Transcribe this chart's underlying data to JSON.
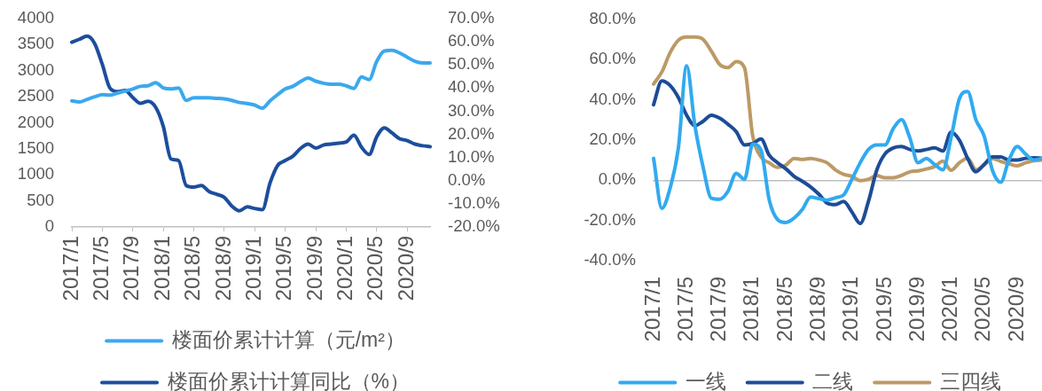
{
  "chart_data": [
    {
      "type": "line",
      "categories": [
        "2017/1",
        null,
        null,
        null,
        "2017/5",
        null,
        null,
        null,
        "2017/9",
        null,
        null,
        null,
        "2018/1",
        null,
        null,
        null,
        "2018/5",
        null,
        null,
        null,
        "2018/9",
        null,
        null,
        null,
        "2019/1",
        null,
        null,
        null,
        "2019/5",
        null,
        null,
        null,
        "2019/9",
        null,
        null,
        null,
        "2020/1",
        null,
        null,
        null,
        "2020/5",
        null,
        null,
        null,
        "2020/9",
        null,
        null,
        null
      ],
      "series": [
        {
          "name": "楼面价累计计算（元/m²）",
          "color": "#3ba8ef",
          "values": [
            2420,
            2400,
            2450,
            2500,
            2540,
            2530,
            2570,
            2610,
            2650,
            2700,
            2710,
            2770,
            2670,
            2650,
            2670,
            2430,
            2480,
            2480,
            2480,
            2470,
            2460,
            2430,
            2390,
            2370,
            2340,
            2280,
            2420,
            2540,
            2650,
            2700,
            2790,
            2860,
            2800,
            2760,
            2740,
            2740,
            2710,
            2660,
            2880,
            2830,
            3180,
            3380,
            3390,
            3340,
            3260,
            3180,
            3150,
            3150
          ]
        },
        {
          "name": "楼面价累计计算同比（%）",
          "color": "#1c4e9d",
          "axis": "y2",
          "values": [
            59.8,
            61.1,
            62.4,
            59.2,
            50.2,
            40.0,
            38.5,
            39.0,
            35.9,
            33.4,
            34.3,
            31.7,
            23.4,
            9.4,
            8.7,
            -2.1,
            -2.8,
            -2.1,
            -4.7,
            -5.9,
            -7.2,
            -11.0,
            -13.0,
            -11.3,
            -12.0,
            -12.5,
            -1.0,
            6.6,
            8.7,
            10.6,
            13.9,
            15.8,
            14.1,
            15.4,
            15.8,
            16.2,
            16.7,
            19.6,
            14.5,
            11.3,
            19.0,
            22.8,
            20.6,
            18.1,
            17.3,
            15.8,
            15.1,
            14.7
          ]
        }
      ],
      "ylim": [
        0,
        4000
      ],
      "yticks": [
        0,
        500,
        1000,
        1500,
        2000,
        2500,
        3000,
        3500,
        4000
      ],
      "y2lim": [
        -20,
        70
      ],
      "y2ticks": [
        {
          "value": -20,
          "label": "-20.0%"
        },
        {
          "value": -10,
          "label": "-10.0%"
        },
        {
          "value": 0,
          "label": "0.0%"
        },
        {
          "value": 10,
          "label": "10.0%"
        },
        {
          "value": 20,
          "label": "20.0%"
        },
        {
          "value": 30,
          "label": "30.0%"
        },
        {
          "value": 40,
          "label": "40.0%"
        },
        {
          "value": 50,
          "label": "50.0%"
        },
        {
          "value": 60,
          "label": "60.0%"
        },
        {
          "value": 70,
          "label": "70.0%"
        }
      ],
      "legend": "bottom"
    },
    {
      "type": "line",
      "categories": [
        "2017/1",
        null,
        null,
        null,
        "2017/5",
        null,
        null,
        null,
        "2017/9",
        null,
        null,
        null,
        "2018/1",
        null,
        null,
        null,
        "2018/5",
        null,
        null,
        null,
        "2018/9",
        null,
        null,
        null,
        "2019/1",
        null,
        null,
        null,
        "2019/5",
        null,
        null,
        null,
        "2019/9",
        null,
        null,
        null,
        "2020/1",
        null,
        null,
        null,
        "2020/5",
        null,
        null,
        null,
        "2020/9",
        null,
        null,
        null
      ],
      "series": [
        {
          "name": "一线",
          "color": "#31aaf0",
          "values": [
            10.9,
            -14.0,
            -3.9,
            16.0,
            57.0,
            27.2,
            6.4,
            -9.0,
            -9.5,
            -5.5,
            3.5,
            0.5,
            18.0,
            15.0,
            -9.9,
            -19.5,
            -21.0,
            -18.8,
            -14.5,
            -8.4,
            -9.1,
            -9.9,
            -8.7,
            -7.3,
            0.5,
            8.7,
            15.3,
            17.6,
            17.6,
            25.7,
            30.1,
            21.2,
            8.7,
            10.9,
            7.9,
            5.2,
            21.2,
            40.5,
            44.2,
            30.1,
            22.0,
            5.0,
            -1.0,
            10.1,
            16.8,
            13.1,
            10.1,
            10.9
          ]
        },
        {
          "name": "二线",
          "color": "#1d4c97",
          "values": [
            37.6,
            49.5,
            47.2,
            41.2,
            32.4,
            27.2,
            29.4,
            32.4,
            30.9,
            27.9,
            24.2,
            17.6,
            18.3,
            20.5,
            12.4,
            8.7,
            5.7,
            2.0,
            -0.5,
            -3.3,
            -6.9,
            -11.3,
            -12.1,
            -10.6,
            -15.8,
            -21.5,
            -10.5,
            5.0,
            13.1,
            16.1,
            16.8,
            15.3,
            14.6,
            15.3,
            16.1,
            14.6,
            24.0,
            20.0,
            10.9,
            4.2,
            7.9,
            11.6,
            11.6,
            10.1,
            10.1,
            10.9,
            11.2,
            10.9
          ]
        },
        {
          "name": "三四线",
          "color": "#bc9a66",
          "values": [
            47.9,
            53.9,
            63.5,
            69.7,
            71.3,
            71.3,
            70.1,
            64.2,
            57.6,
            56.1,
            59.0,
            56.0,
            22.0,
            11.6,
            8.7,
            6.4,
            7.5,
            10.9,
            10.4,
            10.9,
            10.1,
            8.7,
            5.2,
            3.0,
            2.0,
            -0.2,
            0.5,
            2.3,
            1.2,
            1.2,
            2.4,
            4.2,
            4.7,
            5.6,
            6.8,
            9.5,
            5.0,
            8.7,
            11.0,
            5.2,
            7.6,
            10.9,
            9.4,
            8.2,
            7.2,
            8.7,
            9.7,
            10.1
          ]
        }
      ],
      "ylim": [
        -40,
        80
      ],
      "yticks": [
        {
          "value": -40,
          "label": "-40.0%"
        },
        {
          "value": -20,
          "label": "-20.0%"
        },
        {
          "value": 0,
          "label": "0.0%"
        },
        {
          "value": 20,
          "label": "20.0%"
        },
        {
          "value": 40,
          "label": "40.0%"
        },
        {
          "value": 60,
          "label": "60.0%"
        },
        {
          "value": 80,
          "label": "80.0%"
        }
      ],
      "legend": "bottom"
    }
  ]
}
